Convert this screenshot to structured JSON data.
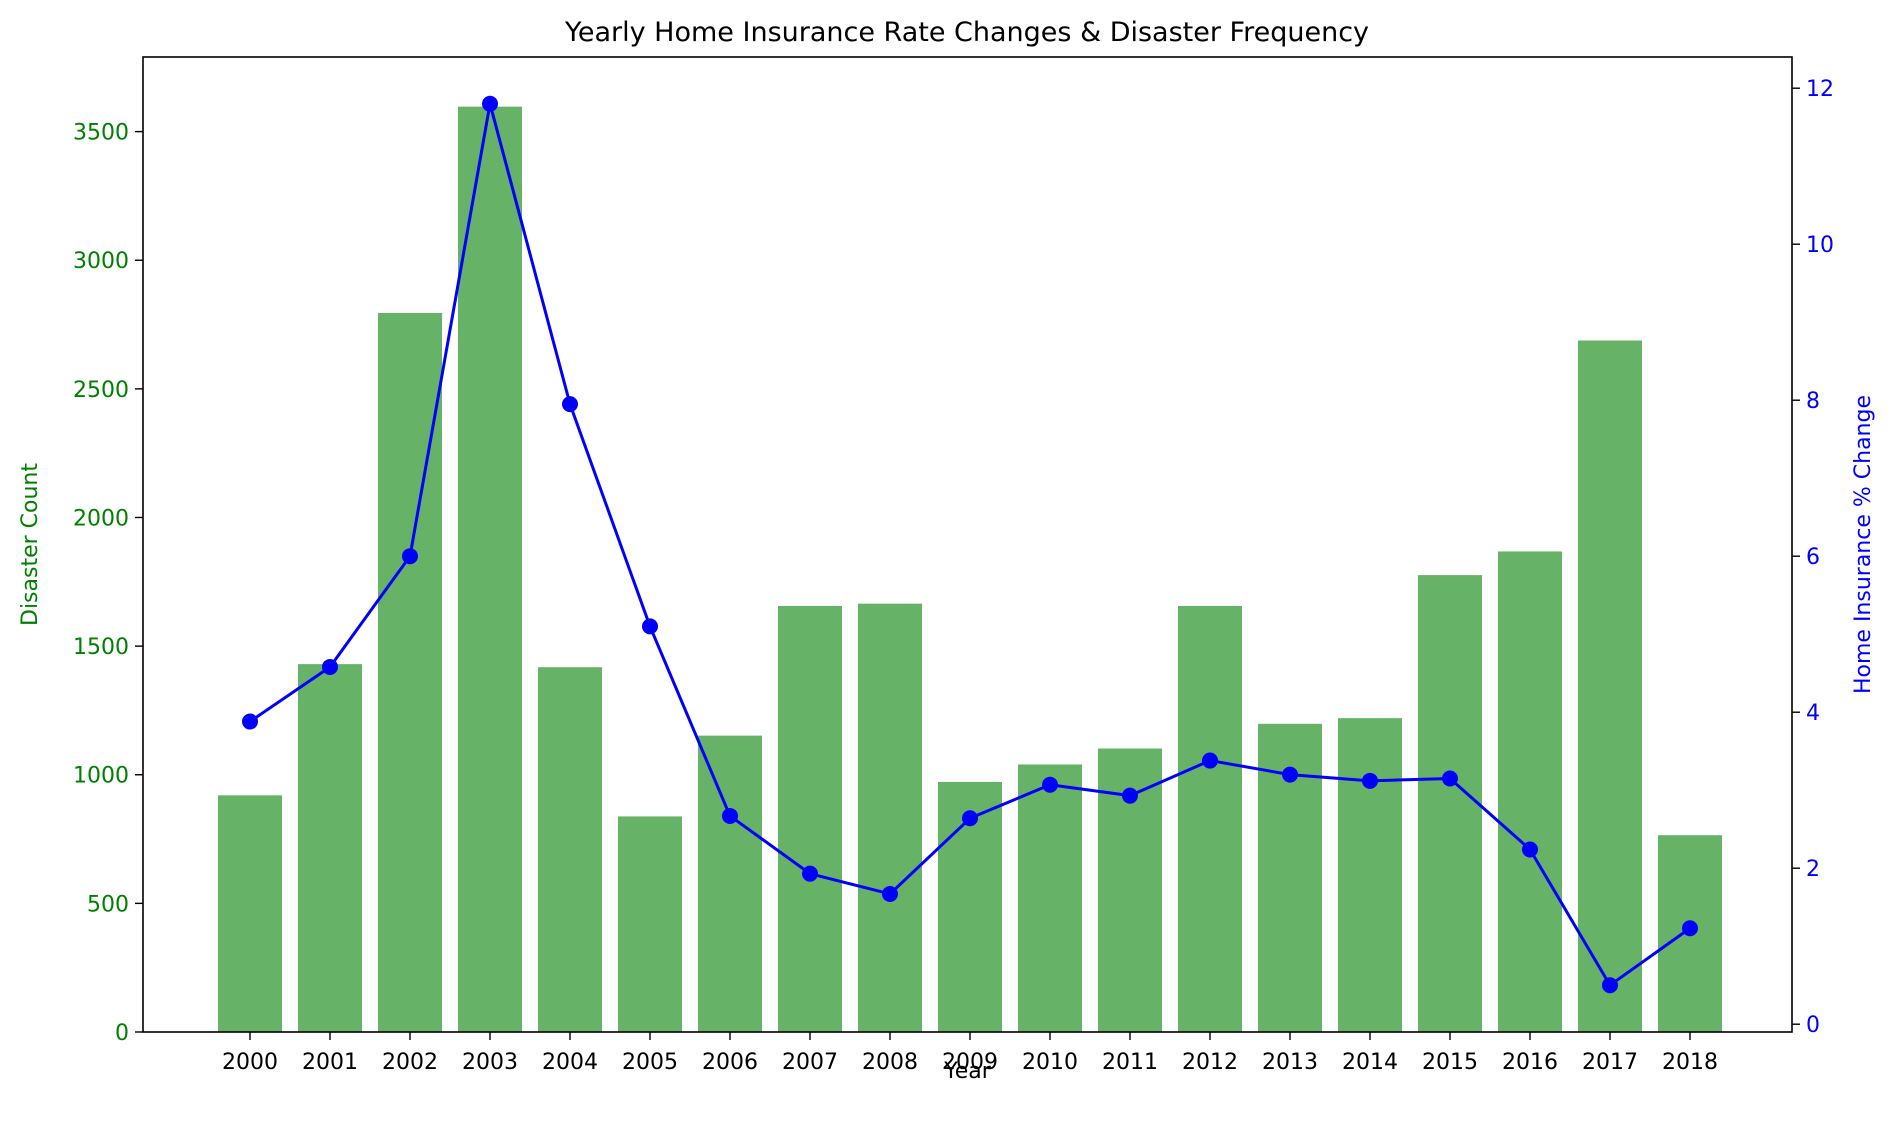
{
  "chart_data": {
    "type": "bar+line",
    "title": "Yearly Home Insurance Rate Changes & Disaster Frequency",
    "xlabel": "Year",
    "categories": [
      "2000",
      "2001",
      "2002",
      "2003",
      "2004",
      "2005",
      "2006",
      "2007",
      "2008",
      "2009",
      "2010",
      "2011",
      "2012",
      "2013",
      "2014",
      "2015",
      "2016",
      "2017",
      "2018"
    ],
    "bar_series": {
      "axis": "left",
      "ylabel": "Disaster Count",
      "ylim": [
        0,
        3790
      ],
      "yticks": [
        0,
        500,
        1000,
        1500,
        2000,
        2500,
        3000,
        3500
      ],
      "values": [
        920,
        1430,
        2795,
        3597,
        1418,
        838,
        1152,
        1656,
        1665,
        972,
        1040,
        1102,
        1656,
        1198,
        1220,
        1776,
        1868,
        2688,
        765
      ]
    },
    "line_series": {
      "axis": "right",
      "ylabel": "Home Insurance % Change",
      "ylim": [
        -0.1,
        12.4
      ],
      "yticks": [
        0,
        2,
        4,
        6,
        8,
        10,
        12
      ],
      "values": [
        3.88,
        4.58,
        6.0,
        11.8,
        7.95,
        5.1,
        2.67,
        1.93,
        1.67,
        2.64,
        3.07,
        2.93,
        3.38,
        3.2,
        3.12,
        3.15,
        2.24,
        0.5,
        1.23
      ]
    },
    "colors": {
      "bar": "#66b266",
      "left_axis": "#008000",
      "line": "#0000ff",
      "right_axis": "#0000ff"
    },
    "grid": false
  }
}
